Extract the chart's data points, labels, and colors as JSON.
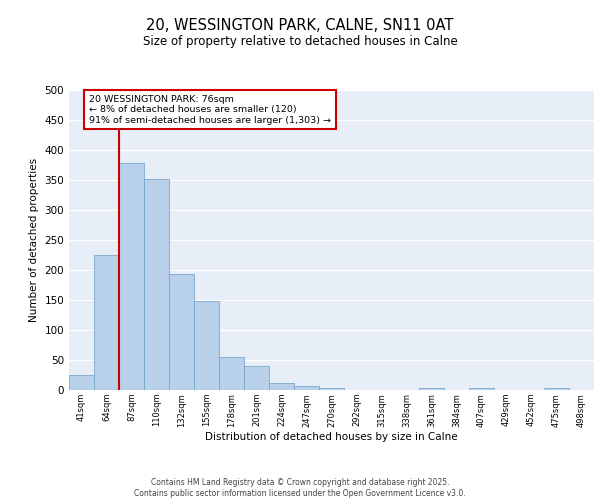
{
  "title_line1": "20, WESSINGTON PARK, CALNE, SN11 0AT",
  "title_line2": "Size of property relative to detached houses in Calne",
  "xlabel": "Distribution of detached houses by size in Calne",
  "ylabel": "Number of detached properties",
  "categories": [
    "41sqm",
    "64sqm",
    "87sqm",
    "110sqm",
    "132sqm",
    "155sqm",
    "178sqm",
    "201sqm",
    "224sqm",
    "247sqm",
    "270sqm",
    "292sqm",
    "315sqm",
    "338sqm",
    "361sqm",
    "384sqm",
    "407sqm",
    "429sqm",
    "452sqm",
    "475sqm",
    "498sqm"
  ],
  "values": [
    25,
    225,
    378,
    352,
    193,
    148,
    55,
    40,
    11,
    7,
    4,
    0,
    0,
    0,
    3,
    0,
    4,
    0,
    0,
    3,
    0
  ],
  "bar_color": "#b8d0ea",
  "bar_edge_color": "#6a9fca",
  "bg_color": "#e8eef8",
  "grid_color": "#ffffff",
  "vline_color": "#cc0000",
  "vline_x": 1.5,
  "annotation_text": "20 WESSINGTON PARK: 76sqm\n← 8% of detached houses are smaller (120)\n91% of semi-detached houses are larger (1,303) →",
  "annotation_box_color": "#cc0000",
  "ylim": [
    0,
    500
  ],
  "yticks": [
    0,
    50,
    100,
    150,
    200,
    250,
    300,
    350,
    400,
    450,
    500
  ],
  "footer_line1": "Contains HM Land Registry data © Crown copyright and database right 2025.",
  "footer_line2": "Contains public sector information licensed under the Open Government Licence v3.0."
}
